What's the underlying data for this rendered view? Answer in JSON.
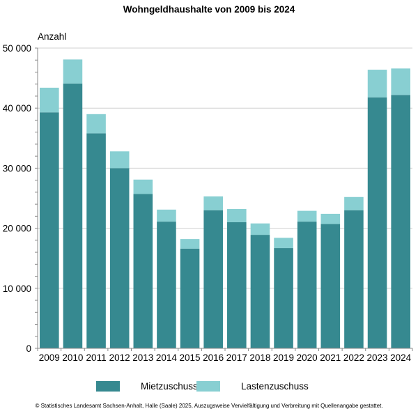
{
  "chart_data": {
    "type": "bar",
    "stacked": true,
    "title": "Wohngeldhaushalte von 2009 bis 2024",
    "ylabel": "Anzahl",
    "xlabel": "",
    "ylim": [
      0,
      50000
    ],
    "yticks": [
      {
        "value": 0,
        "label": "0"
      },
      {
        "value": 10000,
        "label": "10 000"
      },
      {
        "value": 20000,
        "label": "20 000"
      },
      {
        "value": 30000,
        "label": "30 000"
      },
      {
        "value": 40000,
        "label": "40 000"
      },
      {
        "value": 50000,
        "label": "50 000"
      }
    ],
    "grid": true,
    "legend_position": "bottom",
    "categories": [
      "2009",
      "2010",
      "2011",
      "2012",
      "2013",
      "2014",
      "2015",
      "2016",
      "2017",
      "2018",
      "2019",
      "2020",
      "2021",
      "2022",
      "2023",
      "2024"
    ],
    "series": [
      {
        "name": "Mietzuschuss",
        "color": "#368990",
        "values": [
          39300,
          44100,
          35800,
          30000,
          25700,
          21100,
          16600,
          23000,
          21000,
          18900,
          16700,
          21100,
          20700,
          23000,
          41800,
          42200
        ]
      },
      {
        "name": "Lastenzuschuss",
        "color": "#88CFD2",
        "values": [
          4100,
          4000,
          3200,
          2800,
          2400,
          2000,
          1600,
          2300,
          2200,
          1900,
          1700,
          1800,
          1700,
          2200,
          4600,
          4400
        ]
      }
    ]
  },
  "footer": "© Statistisches Landesamt Sachsen-Anhalt, Halle (Saale) 2025, Auszugsweise Vervielfältigung und Verbreitung mit Quellenangabe gestattet."
}
